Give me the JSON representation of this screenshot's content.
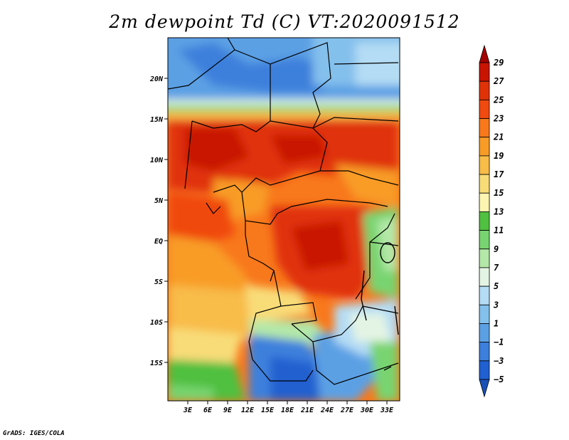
{
  "title": "2m dewpoint Td (C) VT:2020091512",
  "credit": "GrADS: IGES/COLA",
  "lat_labels": [
    "20N",
    "15N",
    "10N",
    "5N",
    "EQ",
    "5S",
    "10S",
    "15S"
  ],
  "lon_labels": [
    "3E",
    "6E",
    "9E",
    "12E",
    "15E",
    "18E",
    "21E",
    "24E",
    "27E",
    "30E",
    "33E"
  ],
  "colorbar": {
    "levels": [
      "29",
      "27",
      "25",
      "23",
      "21",
      "19",
      "17",
      "15",
      "13",
      "11",
      "9",
      "7",
      "5",
      "3",
      "1",
      "−1",
      "−3",
      "−5"
    ],
    "colors": [
      "#a50000",
      "#c81400",
      "#e03208",
      "#f04a10",
      "#f8781c",
      "#f89c28",
      "#f8bc48",
      "#f8dc78",
      "#fcf4b0",
      "#50c040",
      "#78d470",
      "#b4e8a8",
      "#e4f4e4",
      "#b4dcf4",
      "#84c0ec",
      "#5ca0e4",
      "#3c80dc",
      "#2060d0",
      "#1850b8"
    ]
  }
}
